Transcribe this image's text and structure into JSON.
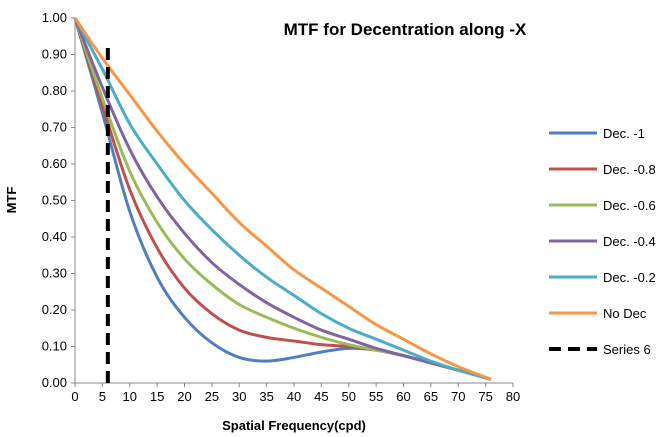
{
  "chart_data": {
    "type": "line",
    "title": "MTF for Decentration along  -X",
    "xlabel": "Spatial Frequency(cpd)",
    "ylabel": "MTF",
    "xlim": [
      0,
      80
    ],
    "ylim": [
      0,
      1
    ],
    "x_ticks": [
      "0",
      "5",
      "10",
      "15",
      "20",
      "25",
      "30",
      "35",
      "40",
      "45",
      "50",
      "55",
      "60",
      "65",
      "70",
      "75",
      "80"
    ],
    "y_ticks": [
      "0.00",
      "0.10",
      "0.20",
      "0.30",
      "0.40",
      "0.50",
      "0.60",
      "0.70",
      "0.80",
      "0.90",
      "1.00"
    ],
    "grid": false,
    "legend_position": "right",
    "series": [
      {
        "name": "Dec. -1",
        "color": "#4F7FBF",
        "x": [
          0,
          5,
          10,
          15,
          20,
          25,
          30,
          35,
          40,
          45,
          50,
          55,
          60,
          65,
          70,
          76
        ],
        "y": [
          1.0,
          0.74,
          0.47,
          0.29,
          0.18,
          0.11,
          0.07,
          0.06,
          0.07,
          0.085,
          0.095,
          0.09,
          0.075,
          0.055,
          0.035,
          0.01
        ]
      },
      {
        "name": "Dec. -0.8",
        "color": "#C0504D",
        "x": [
          0,
          5,
          10,
          15,
          20,
          25,
          30,
          35,
          40,
          45,
          50,
          55,
          60,
          65,
          70,
          76
        ],
        "y": [
          1.0,
          0.76,
          0.53,
          0.37,
          0.26,
          0.19,
          0.145,
          0.125,
          0.115,
          0.105,
          0.1,
          0.09,
          0.075,
          0.055,
          0.035,
          0.01
        ]
      },
      {
        "name": "Dec. -0.6",
        "color": "#9BBB59",
        "x": [
          0,
          5,
          10,
          15,
          20,
          25,
          30,
          35,
          40,
          45,
          50,
          55,
          60,
          65,
          70,
          76
        ],
        "y": [
          1.0,
          0.78,
          0.58,
          0.44,
          0.34,
          0.27,
          0.215,
          0.18,
          0.15,
          0.125,
          0.105,
          0.09,
          0.075,
          0.055,
          0.035,
          0.01
        ]
      },
      {
        "name": "Dec. -0.4",
        "color": "#8064A2",
        "x": [
          0,
          5,
          10,
          15,
          20,
          25,
          30,
          35,
          40,
          45,
          50,
          55,
          60,
          65,
          70,
          76
        ],
        "y": [
          1.0,
          0.81,
          0.64,
          0.51,
          0.41,
          0.33,
          0.27,
          0.22,
          0.18,
          0.145,
          0.12,
          0.095,
          0.075,
          0.055,
          0.035,
          0.01
        ]
      },
      {
        "name": "Dec. -0.2",
        "color": "#4BACC6",
        "x": [
          0,
          5,
          10,
          15,
          20,
          25,
          30,
          35,
          40,
          45,
          50,
          55,
          60,
          65,
          70,
          76
        ],
        "y": [
          1.0,
          0.86,
          0.71,
          0.6,
          0.5,
          0.42,
          0.35,
          0.29,
          0.24,
          0.19,
          0.15,
          0.12,
          0.09,
          0.06,
          0.035,
          0.01
        ]
      },
      {
        "name": "No Dec",
        "color": "#F79646",
        "x": [
          0,
          5,
          10,
          15,
          20,
          25,
          30,
          35,
          40,
          45,
          50,
          55,
          60,
          65,
          70,
          76
        ],
        "y": [
          1.0,
          0.89,
          0.79,
          0.69,
          0.6,
          0.52,
          0.44,
          0.375,
          0.31,
          0.26,
          0.21,
          0.16,
          0.12,
          0.08,
          0.045,
          0.01
        ]
      },
      {
        "name": "Series 6",
        "color": "#000000",
        "dashed": true,
        "x": [
          6,
          6
        ],
        "y": [
          0,
          0.93
        ]
      }
    ]
  }
}
